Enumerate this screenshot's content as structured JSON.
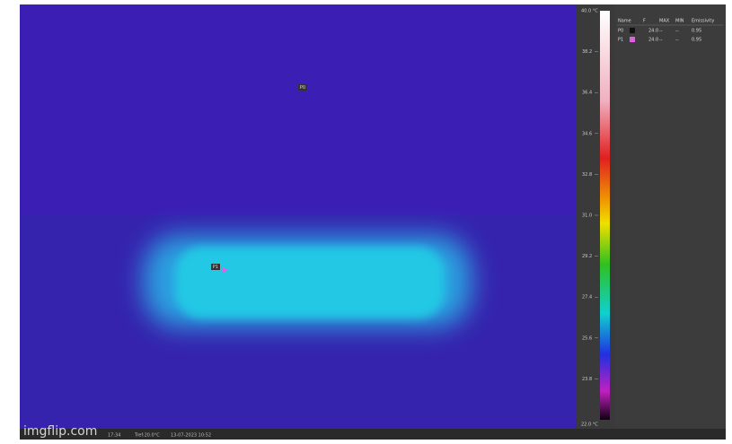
{
  "image": {
    "markers": [
      "P0",
      "P1"
    ]
  },
  "scale": {
    "max": "40.0 °C",
    "ticks": [
      "38.2",
      "36.4",
      "34.6",
      "32.8",
      "31.0",
      "29.2",
      "27.4",
      "25.6",
      "23.8"
    ],
    "min": "22.0 °C"
  },
  "table": {
    "header": [
      "Name",
      "F",
      "MAX",
      "MIN",
      "Emissivity"
    ],
    "rows": [
      [
        "P0",
        "24.0",
        "--",
        "--",
        "0.95"
      ],
      [
        "P1",
        "24.0",
        "--",
        "--",
        "0.95"
      ]
    ]
  },
  "status": {
    "items": [
      "17:34",
      "Tref:20.0°C",
      "13-07-2023 10:52"
    ],
    "watermark": "imgflip.com"
  }
}
